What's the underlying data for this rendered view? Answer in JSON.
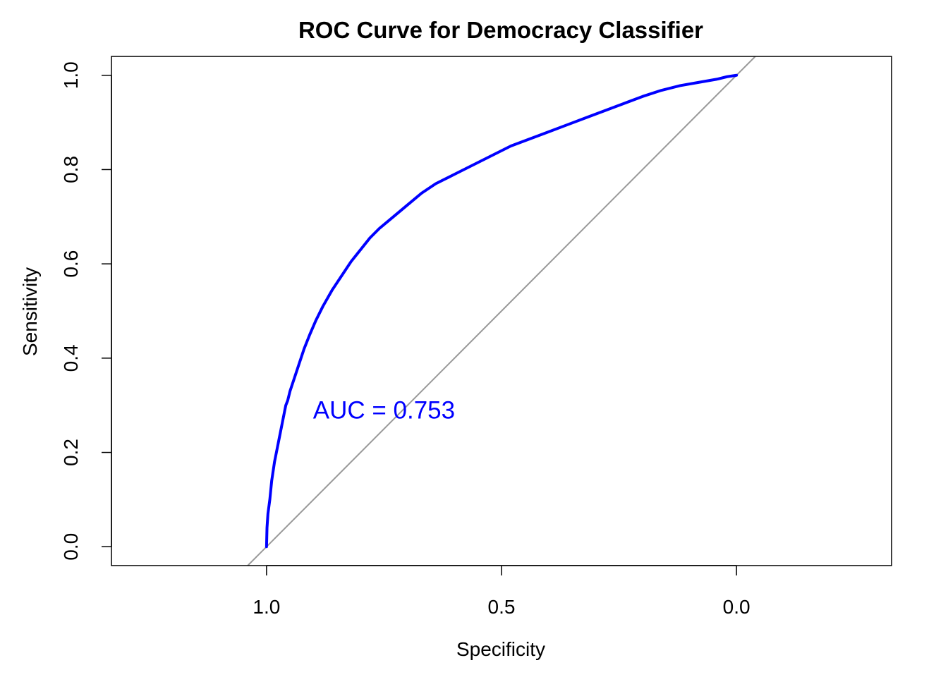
{
  "chart_data": {
    "type": "line",
    "title": "ROC Curve for Democracy Classifier",
    "xlabel": "Specificity",
    "ylabel": "Sensitivity",
    "x_reversed": true,
    "xlim": [
      1.33,
      -0.33
    ],
    "ylim": [
      -0.04,
      1.04
    ],
    "x_ticks": [
      1.0,
      0.5,
      0.0
    ],
    "x_tick_labels": [
      "1.0",
      "0.5",
      "0.0"
    ],
    "y_ticks": [
      0.0,
      0.2,
      0.4,
      0.6,
      0.8,
      1.0
    ],
    "y_tick_labels": [
      "0.0",
      "0.2",
      "0.4",
      "0.6",
      "0.8",
      "1.0"
    ],
    "grid": false,
    "colors": {
      "roc": "#0000ff",
      "diagonal": "#999999",
      "annotation": "#0000ff"
    },
    "series": [
      {
        "x": [
          1.0,
          0.999,
          0.997,
          0.993,
          0.989,
          0.983,
          0.975,
          0.967,
          0.959,
          0.955,
          0.95,
          0.94,
          0.93,
          0.92,
          0.908,
          0.895,
          0.88,
          0.86,
          0.84,
          0.82,
          0.8,
          0.78,
          0.76,
          0.73,
          0.7,
          0.67,
          0.64,
          0.6,
          0.56,
          0.52,
          0.48,
          0.44,
          0.4,
          0.36,
          0.32,
          0.28,
          0.24,
          0.2,
          0.16,
          0.12,
          0.08,
          0.04,
          0.02,
          0.0
        ],
        "y": [
          0.0,
          0.04,
          0.07,
          0.1,
          0.14,
          0.18,
          0.22,
          0.26,
          0.3,
          0.31,
          0.33,
          0.36,
          0.39,
          0.42,
          0.45,
          0.48,
          0.51,
          0.545,
          0.575,
          0.605,
          0.63,
          0.655,
          0.675,
          0.7,
          0.725,
          0.75,
          0.77,
          0.79,
          0.81,
          0.83,
          0.85,
          0.865,
          0.88,
          0.895,
          0.91,
          0.925,
          0.94,
          0.955,
          0.968,
          0.978,
          0.985,
          0.992,
          0.997,
          1.0
        ]
      },
      {
        "x": [
          1.04,
          -0.04
        ],
        "y": [
          -0.04,
          1.04
        ]
      }
    ],
    "annotations": [
      {
        "text": "AUC = 0.753",
        "x": 0.75,
        "y": 0.29
      }
    ]
  }
}
